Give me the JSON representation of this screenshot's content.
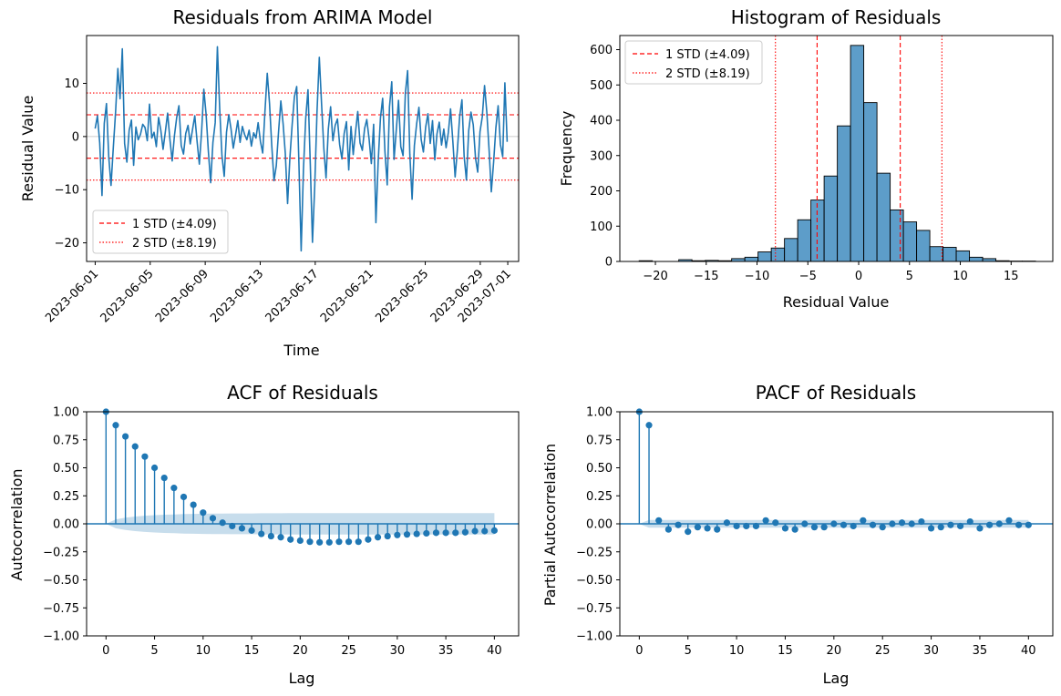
{
  "figure": {
    "background": "#ffffff",
    "series_color": "#1f77b4",
    "std_color": "#ff0000"
  },
  "chart_data": [
    {
      "id": "residuals",
      "type": "line",
      "title": "Residuals from ARIMA Model",
      "xlabel": "Time",
      "ylabel": "Residual Value",
      "x_ticks": [
        "2023-06-01",
        "2023-06-05",
        "2023-06-09",
        "2023-06-13",
        "2023-06-17",
        "2023-06-21",
        "2023-06-25",
        "2023-06-29",
        "2023-07-01"
      ],
      "xlim": [
        "2023-05-31T09:00",
        "2023-07-01T19:00"
      ],
      "ylim": [
        -23.5,
        19
      ],
      "y_ticks": [
        -20,
        -10,
        0,
        10
      ],
      "series_start": "2023-06-01T00:00",
      "series_end": "2023-06-30T23:00",
      "series_frequency": "hourly",
      "series_sample_interval_hours": 4,
      "values": [
        1.5,
        3.9,
        -1.2,
        -11.1,
        2.5,
        6.2,
        -3.8,
        -9.2,
        -2.1,
        4.6,
        12.8,
        7.1,
        16.5,
        -1.3,
        -4.8,
        1.2,
        3.1,
        -5.4,
        1.8,
        -0.6,
        0.4,
        2.3,
        1.7,
        -0.8,
        6.1,
        -0.3,
        0.8,
        -1.9,
        3.6,
        1.1,
        -2.4,
        0.9,
        4.4,
        -0.5,
        -4.6,
        0.2,
        3.5,
        5.8,
        -1.7,
        -3.3,
        0.6,
        2.1,
        -1.4,
        1.3,
        3.9,
        -0.9,
        -5.2,
        1.0,
        8.9,
        4.2,
        -2.8,
        -8.7,
        -1.1,
        2.6,
        16.9,
        5.3,
        -3.6,
        -7.5,
        0.8,
        4.1,
        1.5,
        -2.2,
        0.3,
        3.0,
        -1.1,
        1.9,
        0.4,
        -0.6,
        1.2,
        -1.8,
        0.7,
        -0.3,
        2.6,
        -0.9,
        -3.1,
        4.8,
        11.9,
        6.2,
        -1.6,
        -8.3,
        -5.5,
        0.9,
        6.7,
        2.4,
        -3.2,
        -12.6,
        -4.1,
        2.2,
        7.5,
        9.4,
        -4.8,
        -21.5,
        -6.2,
        3.4,
        8.8,
        -5.1,
        -19.9,
        -9.3,
        4.7,
        14.9,
        6.1,
        -2.3,
        -7.8,
        1.4,
        5.6,
        -0.8,
        2.1,
        3.3,
        -1.5,
        -4.2,
        0.6,
        2.8,
        -6.3,
        1.9,
        -3.4,
        0.8,
        4.7,
        -1.2,
        -2.6,
        1.5,
        3.2,
        -0.4,
        -5.1,
        2.3,
        -16.2,
        -4.7,
        3.5,
        7.2,
        -2.8,
        -9.1,
        5.6,
        10.3,
        -4.3,
        1.1,
        6.8,
        -1.9,
        -3.6,
        8.1,
        12.4,
        -3.3,
        -11.8,
        -1.7,
        2.4,
        5.5,
        -0.6,
        -2.9,
        1.8,
        4.3,
        -1.3,
        3.0,
        -4.4,
        0.5,
        2.7,
        -1.6,
        1.4,
        -2.1,
        0.8,
        5.2,
        -0.9,
        -7.6,
        -2.5,
        3.8,
        6.9,
        -3.7,
        -8.2,
        1.1,
        4.6,
        2.2,
        -4.1,
        -6.7,
        0.9,
        3.7,
        9.6,
        4.5,
        -2.6,
        -10.4,
        -4.9,
        1.6,
        5.8,
        -1.5,
        -3.8,
        10.1,
        -1.0
      ]
    },
    {
      "id": "histogram",
      "type": "bar",
      "title": "Histogram of Residuals",
      "xlabel": "Residual Value",
      "ylabel": "Frequency",
      "xlim": [
        -23.5,
        19.1
      ],
      "ylim": [
        0,
        640
      ],
      "x_ticks": [
        -20,
        -15,
        -10,
        -5,
        0,
        5,
        10,
        15
      ],
      "y_ticks": [
        0,
        100,
        200,
        300,
        400,
        500,
        600
      ],
      "bin_edges": [
        -21.6,
        -20.3,
        -19.0,
        -17.7,
        -16.4,
        -15.1,
        -13.8,
        -12.5,
        -11.2,
        -9.9,
        -8.6,
        -7.3,
        -6.0,
        -4.7,
        -3.4,
        -2.1,
        -0.8,
        0.5,
        1.8,
        3.1,
        4.4,
        5.7,
        7.0,
        8.3,
        9.6,
        10.9,
        12.2,
        13.5,
        14.8,
        16.1,
        17.4
      ],
      "values": [
        2,
        0,
        0,
        5,
        2,
        3,
        2,
        8,
        12,
        27,
        38,
        65,
        118,
        174,
        242,
        384,
        612,
        450,
        250,
        146,
        112,
        88,
        42,
        40,
        30,
        12,
        8,
        2,
        1,
        1
      ]
    },
    {
      "id": "acf",
      "type": "stem",
      "title": "ACF of Residuals",
      "xlabel": "Lag",
      "ylabel": "Autocorrelation",
      "xlim": [
        -2,
        42.5
      ],
      "ylim": [
        -1.0,
        1.0
      ],
      "x_ticks": [
        0,
        5,
        10,
        15,
        20,
        25,
        30,
        35,
        40
      ],
      "y_ticks": [
        -1.0,
        -0.75,
        -0.5,
        -0.25,
        0.0,
        0.25,
        0.5,
        0.75,
        1.0
      ],
      "y_tick_labels": [
        "−1.00",
        "−0.75",
        "−0.50",
        "−0.25",
        "0.00",
        "0.25",
        "0.50",
        "0.75",
        "1.00"
      ],
      "values": [
        1.0,
        0.88,
        0.78,
        0.69,
        0.6,
        0.5,
        0.41,
        0.32,
        0.24,
        0.17,
        0.1,
        0.05,
        0.01,
        -0.02,
        -0.04,
        -0.06,
        -0.09,
        -0.11,
        -0.12,
        -0.14,
        -0.15,
        -0.16,
        -0.165,
        -0.165,
        -0.16,
        -0.16,
        -0.16,
        -0.14,
        -0.12,
        -0.11,
        -0.1,
        -0.095,
        -0.09,
        -0.085,
        -0.08,
        -0.08,
        -0.08,
        -0.075,
        -0.065,
        -0.065,
        -0.06
      ],
      "confidence_band_upper": [
        0.0,
        0.04,
        0.055,
        0.065,
        0.072,
        0.077,
        0.081,
        0.084,
        0.087,
        0.089,
        0.09,
        0.091,
        0.092,
        0.093,
        0.093,
        0.093,
        0.094,
        0.094,
        0.094,
        0.095,
        0.095,
        0.095,
        0.095,
        0.095,
        0.095,
        0.095,
        0.096,
        0.096,
        0.096,
        0.096,
        0.096,
        0.096,
        0.096,
        0.096,
        0.096,
        0.096,
        0.096,
        0.096,
        0.096,
        0.096,
        0.096
      ]
    },
    {
      "id": "pacf",
      "type": "stem",
      "title": "PACF of Residuals",
      "xlabel": "Lag",
      "ylabel": "Partial Autocorrelation",
      "xlim": [
        -2,
        42.5
      ],
      "ylim": [
        -1.0,
        1.0
      ],
      "x_ticks": [
        0,
        5,
        10,
        15,
        20,
        25,
        30,
        35,
        40
      ],
      "y_ticks": [
        -1.0,
        -0.75,
        -0.5,
        -0.25,
        0.0,
        0.25,
        0.5,
        0.75,
        1.0
      ],
      "y_tick_labels": [
        "−1.00",
        "−0.75",
        "−0.50",
        "−0.25",
        "0.00",
        "0.25",
        "0.50",
        "0.75",
        "1.00"
      ],
      "values": [
        1.0,
        0.88,
        0.03,
        -0.05,
        -0.01,
        -0.07,
        -0.03,
        -0.04,
        -0.05,
        0.01,
        -0.02,
        -0.02,
        -0.02,
        0.03,
        0.01,
        -0.04,
        -0.05,
        0.0,
        -0.03,
        -0.03,
        0.0,
        -0.01,
        -0.02,
        0.03,
        -0.01,
        -0.03,
        0.0,
        0.01,
        0.0,
        0.02,
        -0.04,
        -0.03,
        -0.01,
        -0.02,
        0.02,
        -0.04,
        -0.01,
        0.0,
        0.03,
        -0.01,
        -0.01
      ],
      "confidence_band_upper": [
        0.0,
        0.035,
        0.035,
        0.035,
        0.035,
        0.035,
        0.035,
        0.035,
        0.035,
        0.035,
        0.035,
        0.035,
        0.035,
        0.035,
        0.035,
        0.035,
        0.035,
        0.035,
        0.035,
        0.035,
        0.035,
        0.035,
        0.035,
        0.035,
        0.035,
        0.035,
        0.035,
        0.035,
        0.035,
        0.035,
        0.035,
        0.035,
        0.035,
        0.035,
        0.035,
        0.035,
        0.035,
        0.035,
        0.035,
        0.035,
        0.035
      ]
    }
  ],
  "std_lines": {
    "one_std": 4.09,
    "two_std": 8.19,
    "one_label": "1 STD (±4.09)",
    "two_label": "2 STD (±8.19)"
  }
}
